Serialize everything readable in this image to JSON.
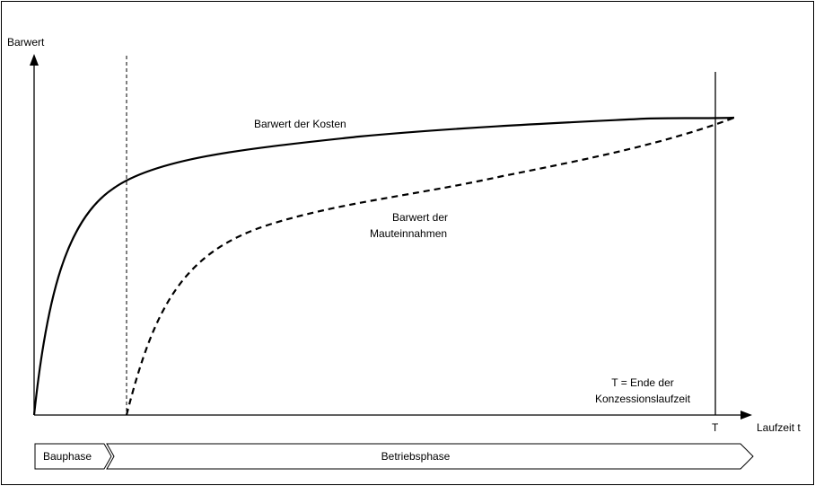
{
  "y_axis_label": "Barwert",
  "x_axis_label": "Laufzeit t",
  "t_tick_label": "T",
  "curves": {
    "costs_label": "Barwert der Kosten",
    "toll_label_line1": "Barwert der",
    "toll_label_line2": "Mauteinnahmen"
  },
  "annotation": {
    "line1": "T = Ende der",
    "line2": "Konzessionslaufzeit"
  },
  "phases": {
    "build": "Bauphase",
    "operation": "Betriebsphase"
  }
}
